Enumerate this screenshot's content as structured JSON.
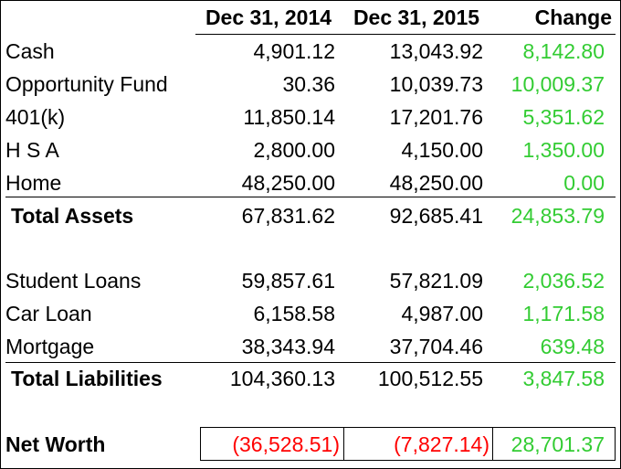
{
  "header": {
    "col1": "Dec 31, 2014",
    "col2": "Dec 31, 2015",
    "col3": "Change"
  },
  "assets": [
    {
      "label": "Cash",
      "y2014": "4,901.12",
      "y2015": "13,043.92",
      "change": "8,142.80"
    },
    {
      "label": "Opportunity Fund",
      "y2014": "30.36",
      "y2015": "10,039.73",
      "change": "10,009.37"
    },
    {
      "label": "401(k)",
      "y2014": "11,850.14",
      "y2015": "17,201.76",
      "change": "5,351.62"
    },
    {
      "label": "H S A",
      "y2014": "2,800.00",
      "y2015": "4,150.00",
      "change": "1,350.00"
    },
    {
      "label": "Home",
      "y2014": "48,250.00",
      "y2015": "48,250.00",
      "change": "0.00"
    }
  ],
  "total_assets": {
    "label": "Total Assets",
    "y2014": "67,831.62",
    "y2015": "92,685.41",
    "change": "24,853.79"
  },
  "liabilities": [
    {
      "label": "Student Loans",
      "y2014": "59,857.61",
      "y2015": "57,821.09",
      "change": "2,036.52"
    },
    {
      "label": "Car Loan",
      "y2014": "6,158.58",
      "y2015": "4,987.00",
      "change": "1,171.58"
    },
    {
      "label": "Mortgage",
      "y2014": "38,343.94",
      "y2015": "37,704.46",
      "change": "639.48"
    }
  ],
  "total_liabilities": {
    "label": "Total Liabilities",
    "y2014": "104,360.13",
    "y2015": "100,512.55",
    "change": "3,847.58"
  },
  "net_worth": {
    "label": "Net Worth",
    "y2014": "(36,528.51)",
    "y2015": "(7,827.14)",
    "change": "28,701.37"
  },
  "colors": {
    "positive": "#33cc33",
    "negative": "#ff0000",
    "text": "#000000"
  }
}
